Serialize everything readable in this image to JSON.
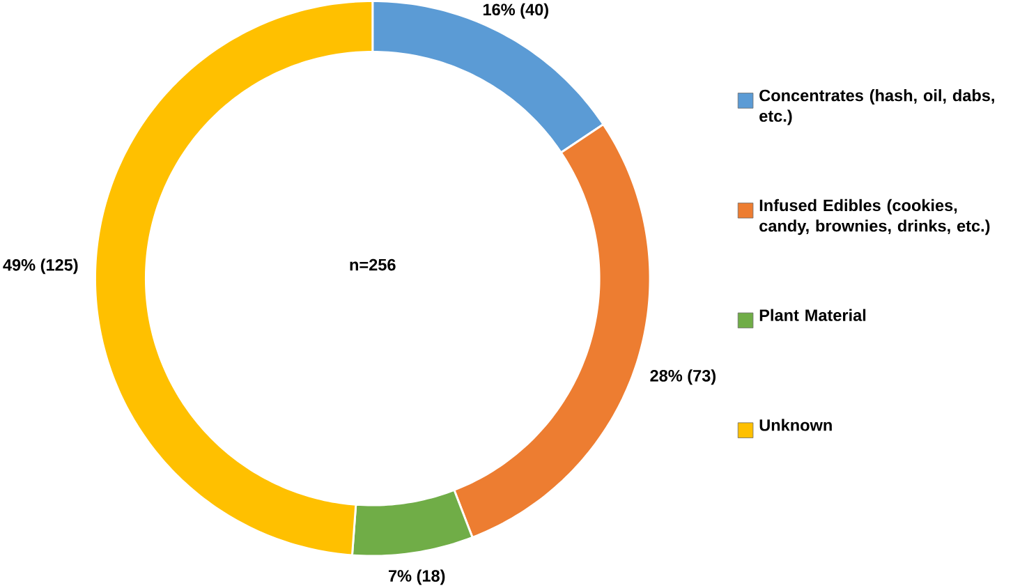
{
  "chart_data": {
    "type": "donut",
    "categories": [
      "Concentrates (hash, oil, dabs, etc.)",
      "Infused Edibles (cookies, candy, brownies, drinks, etc.)",
      "Plant Material",
      "Unknown"
    ],
    "values": [
      40,
      73,
      18,
      125
    ],
    "colors": [
      "#5b9bd5",
      "#ed7d31",
      "#70ad47",
      "#ffc000"
    ],
    "value_labels": [
      "16% (40)",
      "28% (73)",
      "7% (18)",
      "49% (125)"
    ],
    "annotations": [
      "n=256"
    ],
    "legend": "right"
  }
}
